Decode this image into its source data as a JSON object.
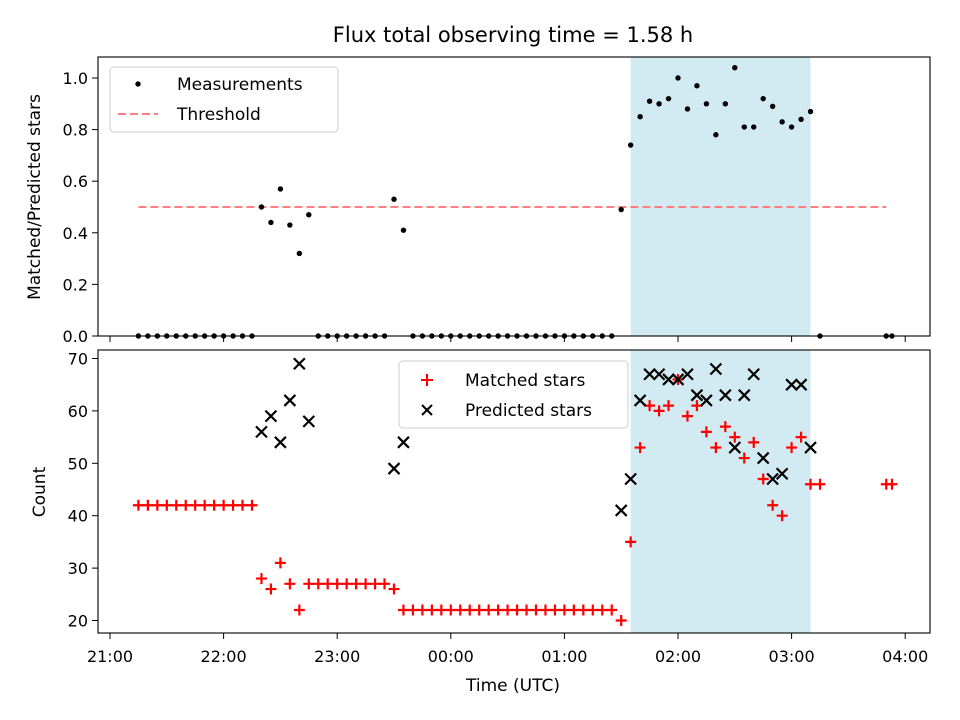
{
  "title": "Flux total observing time = 1.58 h",
  "colors": {
    "measurement": "#000000",
    "threshold": "#ff7f7f",
    "matched": "#ff0000",
    "predicted": "#000000",
    "span": "#add8e6"
  },
  "chart_data": [
    {
      "type": "scatter",
      "ylabel": "Matched/Predicted stars",
      "xlim": [
        "21:00",
        "04:00"
      ],
      "ylim": [
        0,
        1.08
      ],
      "yticks": [
        "0.0",
        "0.2",
        "0.4",
        "0.6",
        "0.8",
        "1.0"
      ],
      "xticks_labels_visible": false,
      "legend": {
        "placement": "top-left",
        "entries": [
          "Measurements",
          "Threshold"
        ]
      },
      "highlight_span": [
        "01:35",
        "03:10"
      ],
      "threshold": {
        "name": "Threshold",
        "value": 0.5,
        "x_range": [
          "21:15",
          "03:50"
        ]
      },
      "series": [
        {
          "name": "Measurements",
          "points": [
            [
              "21:15",
              0
            ],
            [
              "21:20",
              0
            ],
            [
              "21:25",
              0
            ],
            [
              "21:30",
              0
            ],
            [
              "21:35",
              0
            ],
            [
              "21:40",
              0
            ],
            [
              "21:45",
              0
            ],
            [
              "21:50",
              0
            ],
            [
              "21:55",
              0
            ],
            [
              "22:00",
              0
            ],
            [
              "22:05",
              0
            ],
            [
              "22:10",
              0
            ],
            [
              "22:15",
              0
            ],
            [
              "22:20",
              0.5
            ],
            [
              "22:25",
              0.44
            ],
            [
              "22:30",
              0.57
            ],
            [
              "22:35",
              0.43
            ],
            [
              "22:40",
              0.32
            ],
            [
              "22:45",
              0.47
            ],
            [
              "22:50",
              0
            ],
            [
              "22:55",
              0
            ],
            [
              "23:00",
              0
            ],
            [
              "23:05",
              0
            ],
            [
              "23:10",
              0
            ],
            [
              "23:15",
              0
            ],
            [
              "23:20",
              0
            ],
            [
              "23:25",
              0
            ],
            [
              "23:30",
              0.53
            ],
            [
              "23:35",
              0.41
            ],
            [
              "23:40",
              0
            ],
            [
              "23:45",
              0
            ],
            [
              "23:50",
              0
            ],
            [
              "23:55",
              0
            ],
            [
              "00:00",
              0
            ],
            [
              "00:05",
              0
            ],
            [
              "00:10",
              0
            ],
            [
              "00:15",
              0
            ],
            [
              "00:20",
              0
            ],
            [
              "00:25",
              0
            ],
            [
              "00:30",
              0
            ],
            [
              "00:35",
              0
            ],
            [
              "00:40",
              0
            ],
            [
              "00:45",
              0
            ],
            [
              "00:50",
              0
            ],
            [
              "00:55",
              0
            ],
            [
              "01:00",
              0
            ],
            [
              "01:05",
              0
            ],
            [
              "01:10",
              0
            ],
            [
              "01:15",
              0
            ],
            [
              "01:20",
              0
            ],
            [
              "01:25",
              0
            ],
            [
              "01:30",
              0.49
            ],
            [
              "01:35",
              0.74
            ],
            [
              "01:40",
              0.85
            ],
            [
              "01:45",
              0.91
            ],
            [
              "01:50",
              0.9
            ],
            [
              "01:55",
              0.92
            ],
            [
              "02:00",
              1.0
            ],
            [
              "02:05",
              0.88
            ],
            [
              "02:10",
              0.97
            ],
            [
              "02:15",
              0.9
            ],
            [
              "02:20",
              0.78
            ],
            [
              "02:25",
              0.9
            ],
            [
              "02:30",
              1.04
            ],
            [
              "02:35",
              0.81
            ],
            [
              "02:40",
              0.81
            ],
            [
              "02:45",
              0.92
            ],
            [
              "02:50",
              0.89
            ],
            [
              "02:55",
              0.83
            ],
            [
              "03:00",
              0.81
            ],
            [
              "03:05",
              0.84
            ],
            [
              "03:10",
              0.87
            ],
            [
              "03:15",
              0
            ],
            [
              "03:50",
              0
            ],
            [
              "03:53",
              0
            ]
          ]
        }
      ]
    },
    {
      "type": "scatter",
      "xlabel": "Time (UTC)",
      "ylabel": "Count",
      "xlim": [
        "21:00",
        "04:00"
      ],
      "ylim": [
        18,
        71
      ],
      "xticks": [
        "21:00",
        "22:00",
        "23:00",
        "00:00",
        "01:00",
        "02:00",
        "03:00",
        "04:00"
      ],
      "yticks": [
        "20",
        "30",
        "40",
        "50",
        "60",
        "70"
      ],
      "legend": {
        "placement": "top-center",
        "entries": [
          "Matched stars",
          "Predicted stars"
        ]
      },
      "highlight_span": [
        "01:35",
        "03:10"
      ],
      "series": [
        {
          "name": "Matched stars",
          "points": [
            [
              "21:15",
              42
            ],
            [
              "21:20",
              42
            ],
            [
              "21:25",
              42
            ],
            [
              "21:30",
              42
            ],
            [
              "21:35",
              42
            ],
            [
              "21:40",
              42
            ],
            [
              "21:45",
              42
            ],
            [
              "21:50",
              42
            ],
            [
              "21:55",
              42
            ],
            [
              "22:00",
              42
            ],
            [
              "22:05",
              42
            ],
            [
              "22:10",
              42
            ],
            [
              "22:15",
              42
            ],
            [
              "22:20",
              28
            ],
            [
              "22:25",
              26
            ],
            [
              "22:30",
              31
            ],
            [
              "22:35",
              27
            ],
            [
              "22:40",
              22
            ],
            [
              "22:45",
              27
            ],
            [
              "22:50",
              27
            ],
            [
              "22:55",
              27
            ],
            [
              "23:00",
              27
            ],
            [
              "23:05",
              27
            ],
            [
              "23:10",
              27
            ],
            [
              "23:15",
              27
            ],
            [
              "23:20",
              27
            ],
            [
              "23:25",
              27
            ],
            [
              "23:30",
              26
            ],
            [
              "23:35",
              22
            ],
            [
              "23:40",
              22
            ],
            [
              "23:45",
              22
            ],
            [
              "23:50",
              22
            ],
            [
              "23:55",
              22
            ],
            [
              "00:00",
              22
            ],
            [
              "00:05",
              22
            ],
            [
              "00:10",
              22
            ],
            [
              "00:15",
              22
            ],
            [
              "00:20",
              22
            ],
            [
              "00:25",
              22
            ],
            [
              "00:30",
              22
            ],
            [
              "00:35",
              22
            ],
            [
              "00:40",
              22
            ],
            [
              "00:45",
              22
            ],
            [
              "00:50",
              22
            ],
            [
              "00:55",
              22
            ],
            [
              "01:00",
              22
            ],
            [
              "01:05",
              22
            ],
            [
              "01:10",
              22
            ],
            [
              "01:15",
              22
            ],
            [
              "01:20",
              22
            ],
            [
              "01:25",
              22
            ],
            [
              "01:30",
              20
            ],
            [
              "01:35",
              35
            ],
            [
              "01:40",
              53
            ],
            [
              "01:45",
              61
            ],
            [
              "01:50",
              60
            ],
            [
              "01:55",
              61
            ],
            [
              "02:00",
              66
            ],
            [
              "02:05",
              59
            ],
            [
              "02:10",
              61
            ],
            [
              "02:15",
              56
            ],
            [
              "02:20",
              53
            ],
            [
              "02:25",
              57
            ],
            [
              "02:30",
              55
            ],
            [
              "02:35",
              51
            ],
            [
              "02:40",
              54
            ],
            [
              "02:45",
              47
            ],
            [
              "02:50",
              42
            ],
            [
              "02:55",
              40
            ],
            [
              "03:00",
              53
            ],
            [
              "03:05",
              55
            ],
            [
              "03:10",
              46
            ],
            [
              "03:15",
              46
            ],
            [
              "03:50",
              46
            ],
            [
              "03:53",
              46
            ]
          ]
        },
        {
          "name": "Predicted stars",
          "points": [
            [
              "22:20",
              56
            ],
            [
              "22:25",
              59
            ],
            [
              "22:30",
              54
            ],
            [
              "22:35",
              62
            ],
            [
              "22:40",
              69
            ],
            [
              "22:45",
              58
            ],
            [
              "23:30",
              49
            ],
            [
              "23:35",
              54
            ],
            [
              "01:30",
              41
            ],
            [
              "01:35",
              47
            ],
            [
              "01:40",
              62
            ],
            [
              "01:45",
              67
            ],
            [
              "01:50",
              67
            ],
            [
              "01:55",
              66
            ],
            [
              "02:00",
              66
            ],
            [
              "02:05",
              67
            ],
            [
              "02:10",
              63
            ],
            [
              "02:15",
              62
            ],
            [
              "02:20",
              68
            ],
            [
              "02:25",
              63
            ],
            [
              "02:30",
              53
            ],
            [
              "02:35",
              63
            ],
            [
              "02:40",
              67
            ],
            [
              "02:45",
              51
            ],
            [
              "02:50",
              47
            ],
            [
              "02:55",
              48
            ],
            [
              "03:00",
              65
            ],
            [
              "03:05",
              65
            ],
            [
              "03:10",
              53
            ]
          ]
        }
      ]
    }
  ]
}
